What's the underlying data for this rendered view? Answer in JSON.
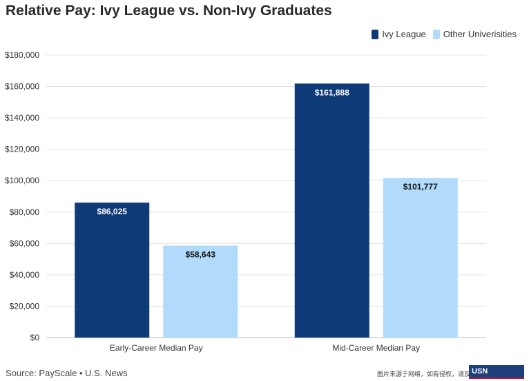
{
  "title": "Relative Pay: Ivy League vs. Non-Ivy Graduates",
  "source": "Source: PayScale • U.S. News",
  "footer_note": "图片来源于网络，如有侵权，请及时联系删除",
  "logo_text": "USN",
  "colors": {
    "ivy": "#0f3a78",
    "other": "#b2dbfb",
    "grid": "#e3e3e3",
    "axis_text": "#333333"
  },
  "chart_data": {
    "type": "bar",
    "title": "Relative Pay: Ivy League vs. Non-Ivy Graduates",
    "categories": [
      "Early-Career Median Pay",
      "Mid-Career Median Pay"
    ],
    "series": [
      {
        "name": "Ivy League",
        "values": [
          86025,
          161888
        ],
        "labels": [
          "$86,025",
          "$161,888"
        ]
      },
      {
        "name": "Other Univerisities",
        "values": [
          58643,
          101777
        ],
        "labels": [
          "$58,643",
          "$101,777"
        ]
      }
    ],
    "ylim": [
      0,
      180000
    ],
    "yticks": [
      "$0",
      "$20,000",
      "$40,000",
      "$60,000",
      "$80,000",
      "$100,000",
      "$120,000",
      "$140,000",
      "$160,000",
      "$180,000"
    ],
    "grid": true,
    "legend": "top-right",
    "xlabel": "",
    "ylabel": ""
  }
}
